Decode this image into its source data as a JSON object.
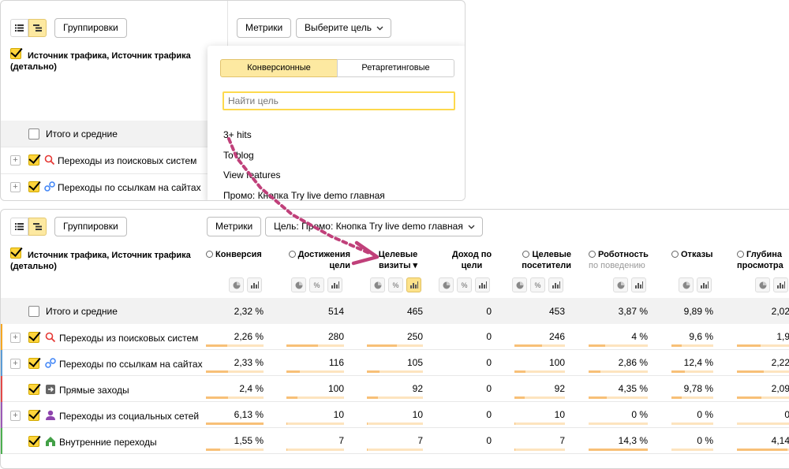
{
  "top": {
    "groupings_label": "Группировки",
    "metrics_label": "Метрики",
    "goal_select_label": "Выберите цель",
    "dimension_title": "Источник трафика, Источник трафика (детально)",
    "totals_label": "Итого и средние",
    "rows": [
      "Переходы из поисковых систем",
      "Переходы по ссылкам на сайтах"
    ],
    "dropdown": {
      "tabs": [
        "Конверсионные",
        "Ретаргетинговые"
      ],
      "search_placeholder": "Найти цель",
      "goals": [
        "3+ hits",
        "To blog",
        "View features",
        "Промо: Кнопка Try live demo главная"
      ]
    }
  },
  "bottom": {
    "groupings_label": "Группировки",
    "metrics_label": "Метрики",
    "goal_select_label": "Цель: Промо: Кнопка Try live demo главная",
    "dimension_title": "Источник трафика, Источник трафика (детально)",
    "columns": [
      {
        "title": "Конверсия",
        "sub": ""
      },
      {
        "title": "Достижения цели",
        "sub": ""
      },
      {
        "title": "Целевые визиты",
        "sub": ""
      },
      {
        "title": "Доход по цели",
        "sub": ""
      },
      {
        "title": "Целевые посетители",
        "sub": ""
      },
      {
        "title": "Роботность",
        "sub": "по поведению"
      },
      {
        "title": "Отказы",
        "sub": ""
      },
      {
        "title": "Глубина просмотра",
        "sub": ""
      }
    ],
    "totals": {
      "label": "Итого и средние",
      "values": [
        "2,32 %",
        "514",
        "465",
        "0",
        "453",
        "3,87 %",
        "9,89 %",
        "2,02"
      ]
    },
    "rows": [
      {
        "label": "Переходы из поисковых систем",
        "icon": "search-icon",
        "values": [
          "2,26 %",
          "280",
          "250",
          "0",
          "246",
          "4 %",
          "9,6 %",
          "1,9"
        ],
        "fill": [
          0.37,
          0.55,
          0.54,
          0,
          0.54,
          0.28,
          0.25,
          0.45
        ]
      },
      {
        "label": "Переходы по ссылкам на сайтах",
        "icon": "link-icon",
        "values": [
          "2,33 %",
          "116",
          "105",
          "0",
          "100",
          "2,86 %",
          "12,4 %",
          "2,22"
        ],
        "fill": [
          0.38,
          0.23,
          0.23,
          0,
          0.22,
          0.2,
          0.32,
          0.5
        ]
      },
      {
        "label": "Прямые заходы",
        "icon": "direct-icon",
        "values": [
          "2,4 %",
          "100",
          "92",
          "0",
          "92",
          "4,35 %",
          "9,78 %",
          "2,09"
        ],
        "fill": [
          0.39,
          0.19,
          0.2,
          0,
          0.2,
          0.3,
          0.25,
          0.47
        ]
      },
      {
        "label": "Переходы из социальных сетей",
        "icon": "social-icon",
        "values": [
          "6,13 %",
          "10",
          "10",
          "0",
          "10",
          "0 %",
          "0 %",
          "0"
        ],
        "fill": [
          1.0,
          0.02,
          0.02,
          0,
          0.02,
          0,
          0,
          0
        ]
      },
      {
        "label": "Внутренние переходы",
        "icon": "home-icon",
        "values": [
          "1,55 %",
          "7",
          "7",
          "0",
          "7",
          "14,3 %",
          "0 %",
          "4,14"
        ],
        "fill": [
          0.25,
          0.01,
          0.02,
          0,
          0.02,
          1.0,
          0,
          0.95
        ]
      }
    ],
    "row_marks": [
      "#f5a623",
      "#5b9bd5",
      "#e24a4a",
      "#9b59b6",
      "#4caf50"
    ]
  }
}
